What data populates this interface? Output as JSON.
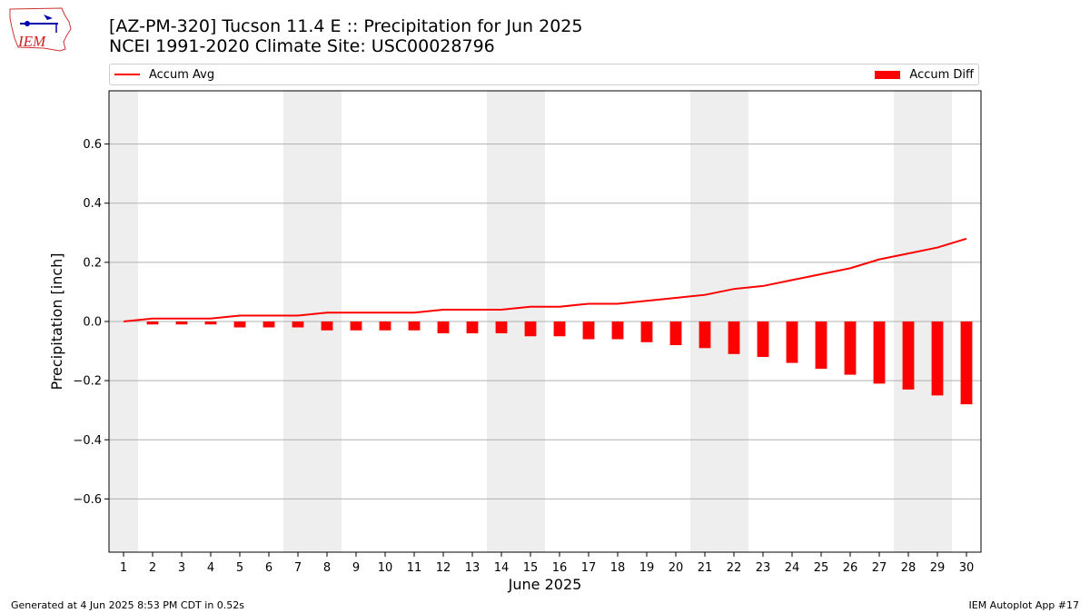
{
  "header": {
    "title_line1": "[AZ-PM-320] Tucson 11.4 E :: Precipitation for Jun 2025",
    "title_line2": "NCEI 1991-2020 Climate Site: USC00028796"
  },
  "logo": {
    "text": "IEM",
    "icon": "iem-iowa-logo"
  },
  "legend": {
    "placement": "top, spanning plot width",
    "line_label": "Accum Avg",
    "bar_label": "Accum Diff"
  },
  "footer": {
    "left": "Generated at 4 Jun 2025 8:53 PM CDT in 0.52s",
    "right": "IEM Autoplot App #17"
  },
  "chart_data": {
    "type": "bar",
    "title": "[AZ-PM-320] Tucson 11.4 E :: Precipitation for Jun 2025",
    "subtitle": "NCEI 1991-2020 Climate Site: USC00028796",
    "xlabel": "June 2025",
    "ylabel": "Precipitation [inch]",
    "x": [
      1,
      2,
      3,
      4,
      5,
      6,
      7,
      8,
      9,
      10,
      11,
      12,
      13,
      14,
      15,
      16,
      17,
      18,
      19,
      20,
      21,
      22,
      23,
      24,
      25,
      26,
      27,
      28,
      29,
      30
    ],
    "xlim": [
      0.5,
      30.5
    ],
    "ylim": [
      -0.78,
      0.78
    ],
    "yticks": [
      -0.6,
      -0.4,
      -0.2,
      0.0,
      0.2,
      0.4,
      0.6
    ],
    "ytick_labels": [
      "−0.6",
      "−0.4",
      "−0.2",
      "0.0",
      "0.2",
      "0.4",
      "0.6"
    ],
    "grid": "horizontal",
    "weekend_shading": [
      [
        0.5,
        1.5
      ],
      [
        6.5,
        8.5
      ],
      [
        13.5,
        15.5
      ],
      [
        20.5,
        22.5
      ],
      [
        27.5,
        29.5
      ]
    ],
    "shading_color": "#eeeeee",
    "series": [
      {
        "name": "Accum Avg",
        "kind": "line",
        "color": "#ff0000",
        "values": [
          0.0,
          0.01,
          0.01,
          0.01,
          0.02,
          0.02,
          0.02,
          0.03,
          0.03,
          0.03,
          0.03,
          0.04,
          0.04,
          0.04,
          0.05,
          0.05,
          0.06,
          0.06,
          0.07,
          0.08,
          0.09,
          0.11,
          0.12,
          0.14,
          0.16,
          0.18,
          0.21,
          0.23,
          0.25,
          0.28
        ]
      },
      {
        "name": "Accum Diff",
        "kind": "bar",
        "color": "#ff0000",
        "values": [
          0.0,
          -0.01,
          -0.01,
          -0.01,
          -0.02,
          -0.02,
          -0.02,
          -0.03,
          -0.03,
          -0.03,
          -0.03,
          -0.04,
          -0.04,
          -0.04,
          -0.05,
          -0.05,
          -0.06,
          -0.06,
          -0.07,
          -0.08,
          -0.09,
          -0.11,
          -0.12,
          -0.14,
          -0.16,
          -0.18,
          -0.21,
          -0.23,
          -0.25,
          -0.28
        ]
      }
    ]
  }
}
